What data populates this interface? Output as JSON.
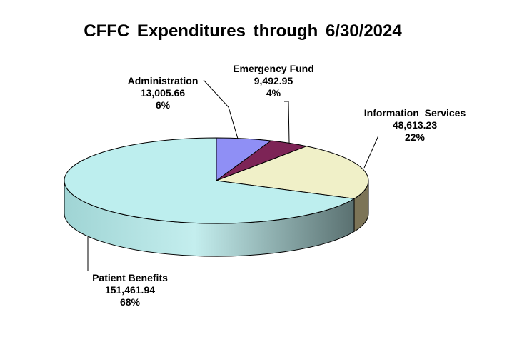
{
  "chart_data": {
    "type": "pie",
    "title": "CFFC Expenditures through 6/30/2024",
    "slices": [
      {
        "name": "Administration",
        "value": 13005.66,
        "value_label": "13,005.66",
        "percent_label": "6%",
        "color": "#8f8ff5"
      },
      {
        "name": "Emergency Fund",
        "value": 9492.95,
        "value_label": "9,492.95",
        "percent_label": "4%",
        "color": "#7d2456"
      },
      {
        "name": "Information  Services",
        "value": 48613.23,
        "value_label": "48,613.23",
        "percent_label": "22%",
        "color": "#f0f0c8"
      },
      {
        "name": "Patient Benefits",
        "value": 151461.94,
        "value_label": "151,461.94",
        "percent_label": "68%",
        "color": "#bdeeee"
      }
    ],
    "style": "3d-pie",
    "legend": "none"
  }
}
